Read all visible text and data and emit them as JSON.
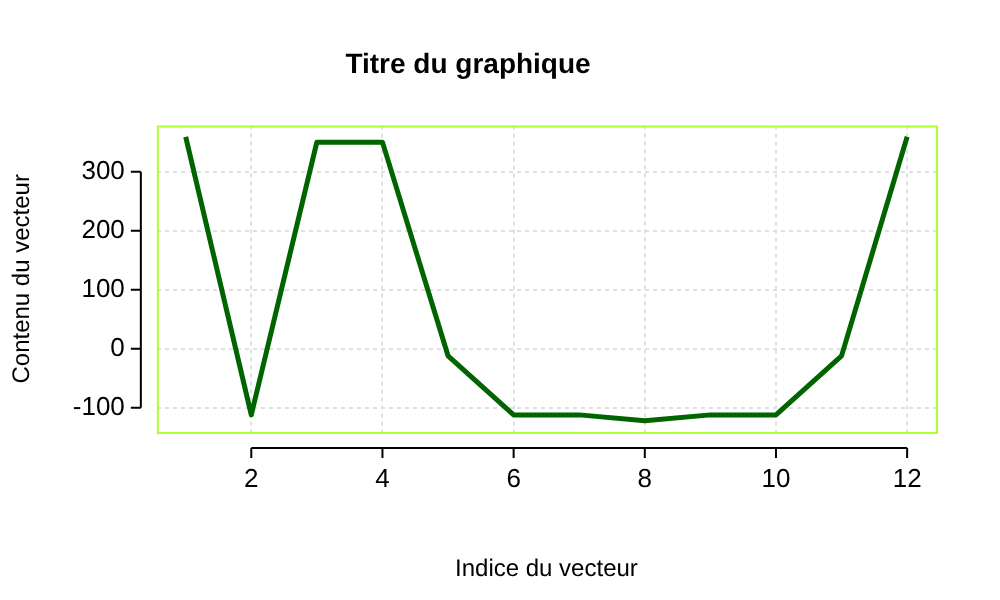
{
  "chart_data": {
    "type": "line",
    "title": "Titre du graphique",
    "xlabel": "Indice du vecteur",
    "ylabel": "Contenu du vecteur",
    "x": [
      1,
      2,
      3,
      4,
      5,
      6,
      7,
      8,
      9,
      10,
      11,
      12
    ],
    "series": [
      {
        "color": "#006400",
        "values": [
          359,
          -112,
          350,
          350,
          -12,
          -112,
          -112,
          -122,
          -112,
          -112,
          -12,
          359
        ]
      }
    ],
    "xlim": [
      0.56,
      12.44
    ],
    "xticks": [
      2,
      4,
      6,
      8,
      10,
      12
    ],
    "ylim": [
      -141,
      378
    ],
    "yticks": [
      -100,
      0,
      100,
      200,
      300
    ],
    "grid": true,
    "legend": false,
    "marker": "none",
    "line_style": "solid"
  }
}
